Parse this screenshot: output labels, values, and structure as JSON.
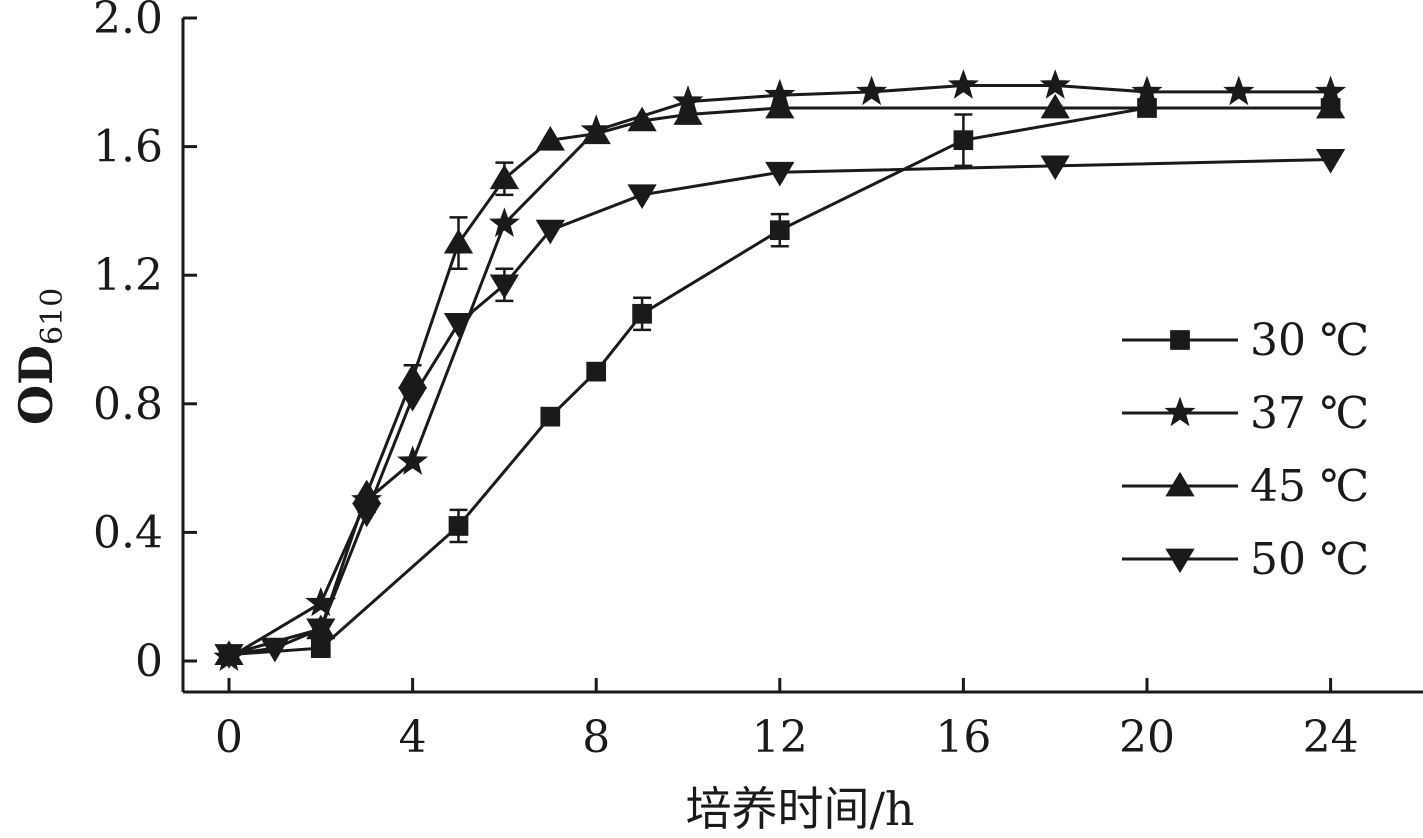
{
  "chart_data": {
    "type": "line",
    "xlabel": "培养时间/h",
    "ylabel": "OD",
    "ylabel_sub": "610",
    "xlim": [
      -1,
      25
    ],
    "ylim": [
      -0.1,
      2.0
    ],
    "xticks": [
      0,
      4,
      8,
      12,
      16,
      20,
      24
    ],
    "yticks": [
      0,
      0.4,
      0.8,
      1.2,
      1.6,
      2.0
    ],
    "ytick_labels": [
      "0",
      "0.4",
      "0.8",
      "1.2",
      "1.6",
      "2.0"
    ],
    "legend_position": "right-middle",
    "series": [
      {
        "name": "30 ℃",
        "marker": "square",
        "x": [
          0,
          2,
          5,
          7,
          8,
          9,
          12,
          16,
          20,
          24
        ],
        "y": [
          0.02,
          0.04,
          0.42,
          0.76,
          0.9,
          1.08,
          1.34,
          1.62,
          1.72,
          1.72
        ],
        "err": [
          0,
          0,
          0.05,
          0,
          0,
          0.05,
          0.05,
          0.08,
          0,
          0
        ]
      },
      {
        "name": "37 ℃",
        "marker": "star",
        "x": [
          0,
          2,
          3,
          4,
          6,
          8,
          10,
          12,
          14,
          16,
          18,
          20,
          22,
          24
        ],
        "y": [
          0.01,
          0.18,
          0.5,
          0.62,
          1.36,
          1.65,
          1.74,
          1.76,
          1.77,
          1.79,
          1.79,
          1.77,
          1.77,
          1.77
        ],
        "err": [
          0,
          0,
          0,
          0,
          0,
          0,
          0,
          0,
          0,
          0,
          0,
          0,
          0,
          0
        ]
      },
      {
        "name": "45 ℃",
        "marker": "triangle-up",
        "x": [
          0,
          2,
          3,
          4,
          5,
          6,
          7,
          8,
          9,
          10,
          12,
          18,
          24
        ],
        "y": [
          0.02,
          0.1,
          0.52,
          0.88,
          1.3,
          1.5,
          1.62,
          1.64,
          1.68,
          1.7,
          1.72,
          1.72,
          1.72
        ],
        "err": [
          0,
          0,
          0,
          0.04,
          0.08,
          0.05,
          0,
          0,
          0,
          0,
          0,
          0,
          0
        ]
      },
      {
        "name": "50 ℃",
        "marker": "triangle-down",
        "x": [
          0,
          1,
          2,
          3,
          4,
          5,
          6,
          7,
          9,
          12,
          18,
          24
        ],
        "y": [
          0.02,
          0.04,
          0.1,
          0.46,
          0.82,
          1.05,
          1.17,
          1.34,
          1.45,
          1.52,
          1.54,
          1.56
        ],
        "err": [
          0,
          0,
          0,
          0,
          0,
          0,
          0.05,
          0,
          0,
          0,
          0,
          0
        ]
      }
    ]
  }
}
